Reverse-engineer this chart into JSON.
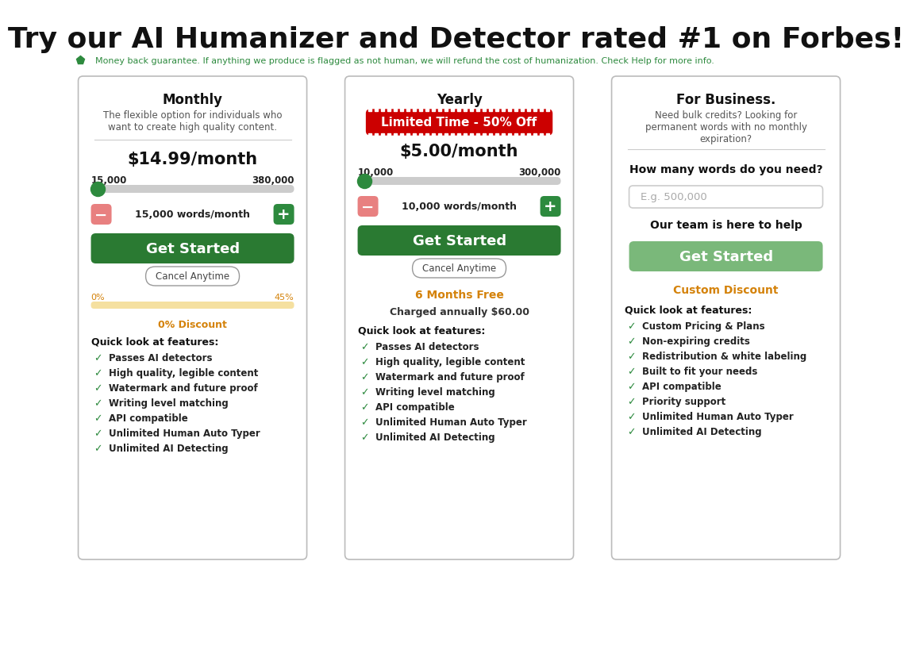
{
  "title": "Try our AI Humanizer and Detector rated #1 on Forbes!",
  "subtitle": "  Money back guarantee. If anything we produce is flagged as not human, we will refund the cost of humanization. Check Help for more info.",
  "bg_color": "#ffffff",
  "card_border_color": "#bbbbbb",
  "green_color": "#2d8a3e",
  "dark_green_btn": "#2a7a32",
  "light_green_btn": "#7ab87a",
  "red_color": "#cc0000",
  "orange_color": "#d4820a",
  "pink_btn": "#e88080",
  "plans": [
    {
      "title": "Monthly",
      "subtitle": "The flexible option for individuals who\nwant to create high quality content.",
      "price": "$14.99/month",
      "range_min": "15,000",
      "range_max": "380,000",
      "words_label": "15,000 words/month",
      "has_badge": false,
      "badge_text": "",
      "cancel_text": "Cancel Anytime",
      "extra1": "",
      "extra2": "",
      "discount_left": "0%",
      "discount_right": "45%",
      "discount_text": "0% Discount",
      "custom_discount": "",
      "input_placeholder": "",
      "features": [
        "Passes AI detectors",
        "High quality, legible content",
        "Watermark and future proof",
        "Writing level matching",
        "API compatible",
        "Unlimited Human Auto Typer",
        "Unlimited AI Detecting"
      ]
    },
    {
      "title": "Yearly",
      "subtitle": "",
      "price": "$5.00/month",
      "range_min": "10,000",
      "range_max": "300,000",
      "words_label": "10,000 words/month",
      "has_badge": true,
      "badge_text": "Limited Time - 50% Off",
      "cancel_text": "Cancel Anytime",
      "extra1": "6 Months Free",
      "extra2": "Charged annually $60.00",
      "discount_left": "",
      "discount_right": "",
      "discount_text": "",
      "custom_discount": "",
      "input_placeholder": "",
      "features": [
        "Passes AI detectors",
        "High quality, legible content",
        "Watermark and future proof",
        "Writing level matching",
        "API compatible",
        "Unlimited Human Auto Typer",
        "Unlimited AI Detecting"
      ]
    },
    {
      "title": "For Business.",
      "subtitle": "Need bulk credits? Looking for\npermanent words with no monthly\nexpiration?",
      "price": "",
      "range_min": "",
      "range_max": "",
      "words_label": "",
      "has_badge": false,
      "badge_text": "",
      "cancel_text": "",
      "extra1": "How many words do you need?",
      "extra2": "Our team is here to help",
      "discount_left": "",
      "discount_right": "",
      "discount_text": "",
      "custom_discount": "Custom Discount",
      "input_placeholder": "E.g. 500,000",
      "features": [
        "Custom Pricing & Plans",
        "Non-expiring credits",
        "Redistribution & white labeling",
        "Built to fit your needs",
        "API compatible",
        "Priority support",
        "Unlimited Human Auto Typer",
        "Unlimited AI Detecting"
      ]
    }
  ]
}
